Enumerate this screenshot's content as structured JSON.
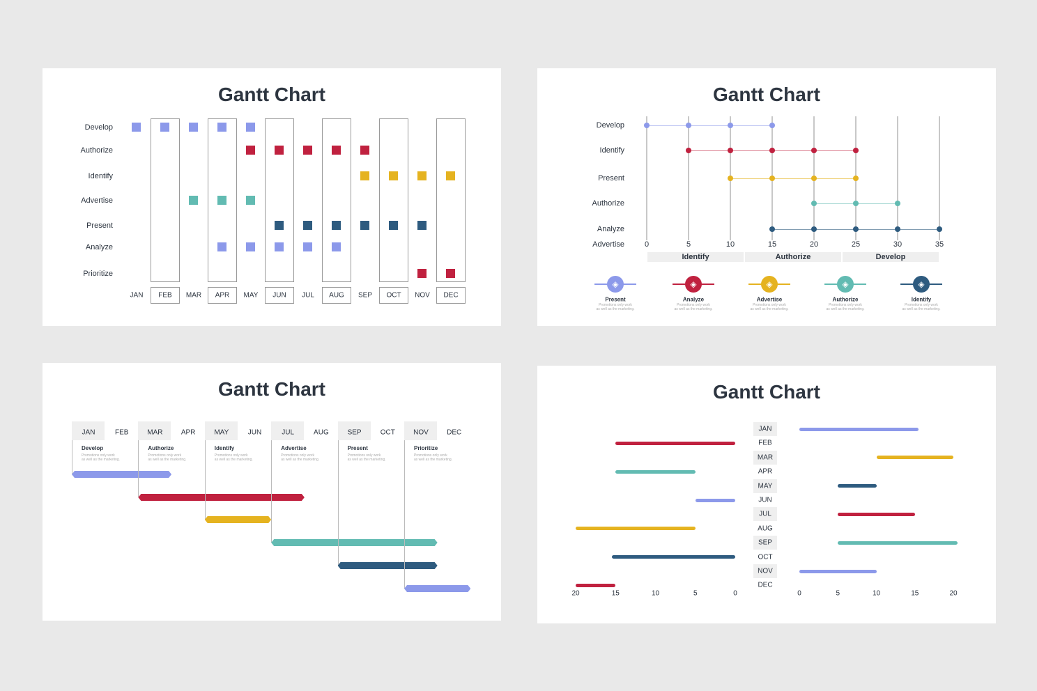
{
  "colors": {
    "lavender": "#8c99ea",
    "crimson": "#c0213f",
    "gold": "#e5b320",
    "teal": "#62bbb2",
    "navy": "#2e5b7f",
    "background": "#e9e9e9"
  },
  "chart_data": [
    {
      "type": "scatter",
      "title": "Gantt Chart",
      "categories": [
        "JAN",
        "FEB",
        "MAR",
        "APR",
        "MAY",
        "JUN",
        "JUL",
        "AUG",
        "SEP",
        "OCT",
        "NOV",
        "DEC"
      ],
      "series": [
        {
          "name": "Develop",
          "color": "lavender",
          "months": [
            "JAN",
            "FEB",
            "MAR",
            "APR",
            "MAY"
          ]
        },
        {
          "name": "Authorize",
          "color": "crimson",
          "months": [
            "MAY",
            "JUN",
            "JUL",
            "AUG",
            "SEP"
          ]
        },
        {
          "name": "Identify",
          "color": "gold",
          "months": [
            "SEP",
            "OCT",
            "NOV",
            "DEC"
          ]
        },
        {
          "name": "Advertise",
          "color": "teal",
          "months": [
            "MAR",
            "APR",
            "MAY"
          ]
        },
        {
          "name": "Present",
          "color": "navy",
          "months": [
            "JUN",
            "JUL",
            "AUG",
            "SEP",
            "OCT",
            "NOV"
          ]
        },
        {
          "name": "Analyze",
          "color": "lavender",
          "months": [
            "APR",
            "MAY",
            "JUN",
            "JUL",
            "AUG"
          ]
        },
        {
          "name": "Prioritize",
          "color": "crimson",
          "months": [
            "NOV",
            "DEC"
          ]
        }
      ]
    },
    {
      "type": "scatter",
      "title": "Gantt Chart",
      "xlim": [
        0,
        35
      ],
      "xticks": [
        "0",
        "5",
        "10",
        "15",
        "20",
        "25",
        "30",
        "35"
      ],
      "rows": [
        "Develop",
        "Identify",
        "Present",
        "Authorize",
        "Analyze",
        "Advertise"
      ],
      "series": [
        {
          "name": "Develop",
          "color": "lavender",
          "x": [
            0,
            5,
            10,
            15
          ]
        },
        {
          "name": "Identify",
          "color": "crimson",
          "x": [
            5,
            10,
            15,
            20,
            25
          ]
        },
        {
          "name": "Present",
          "color": "gold",
          "x": [
            10,
            15,
            20,
            25
          ]
        },
        {
          "name": "Authorize",
          "color": "teal",
          "x": [
            20,
            25,
            30
          ]
        },
        {
          "name": "Analyze",
          "color": "navy",
          "x": [
            15,
            20,
            25,
            30,
            35
          ]
        }
      ],
      "bands": [
        {
          "label": "Identify",
          "from": 0,
          "to": 11.67
        },
        {
          "label": "Authorize",
          "from": 11.67,
          "to": 23.33
        },
        {
          "label": "Develop",
          "from": 23.33,
          "to": 35
        }
      ],
      "legend": [
        {
          "label": "Present",
          "color": "lavender",
          "icon": "rocket-icon",
          "desc1": "Promotions only work",
          "desc2": "as well as the marketing."
        },
        {
          "label": "Analyze",
          "color": "crimson",
          "icon": "piggy-bank-icon",
          "desc1": "Promotions only work",
          "desc2": "as well as the marketing."
        },
        {
          "label": "Advertise",
          "color": "gold",
          "icon": "presentation-board-icon",
          "desc1": "Promotions only work",
          "desc2": "as well as the marketing."
        },
        {
          "label": "Authorize",
          "color": "teal",
          "icon": "delivery-van-icon",
          "desc1": "Promotions only work",
          "desc2": "as well as the marketing."
        },
        {
          "label": "Identify",
          "color": "navy",
          "icon": "piggy-bank-icon",
          "desc1": "Promotions only work",
          "desc2": "as well as the marketing."
        }
      ]
    },
    {
      "type": "bar",
      "title": "Gantt Chart",
      "categories": [
        "JAN",
        "FEB",
        "MAR",
        "APR",
        "MAY",
        "JUN",
        "JUL",
        "AUG",
        "SEP",
        "OCT",
        "NOV",
        "DEC"
      ],
      "series": [
        {
          "name": "Develop",
          "color": "lavender",
          "start": 0,
          "end": 3,
          "desc1": "Promotions only work",
          "desc2": "as well as the marketing."
        },
        {
          "name": "Authorize",
          "color": "crimson",
          "start": 2,
          "end": 7,
          "desc1": "Promotions only work",
          "desc2": "as well as the marketing."
        },
        {
          "name": "Identify",
          "color": "gold",
          "start": 4,
          "end": 6,
          "desc1": "Promotions only work",
          "desc2": "as well as the marketing."
        },
        {
          "name": "Advertise",
          "color": "teal",
          "start": 6,
          "end": 11,
          "desc1": "Promotions only work",
          "desc2": "as well as the marketing."
        },
        {
          "name": "Present",
          "color": "navy",
          "start": 8,
          "end": 11,
          "desc1": "Promotions only work",
          "desc2": "as well as the marketing."
        },
        {
          "name": "Prioritize",
          "color": "lavender",
          "start": 10,
          "end": 12,
          "desc1": "Promotions only work",
          "desc2": "as well as the marketing."
        }
      ]
    },
    {
      "type": "bar",
      "title": "Gantt Chart",
      "categories": [
        "JAN",
        "FEB",
        "MAR",
        "APR",
        "MAY",
        "JUN",
        "JUL",
        "AUG",
        "SEP",
        "OCT",
        "NOV",
        "DEC"
      ],
      "left_ticks": [
        "20",
        "15",
        "10",
        "5",
        "0"
      ],
      "right_ticks": [
        "0",
        "5",
        "10",
        "15",
        "20"
      ],
      "bars": [
        {
          "month": "JAN",
          "side": "right",
          "from": 0,
          "to": 15.5,
          "color": "lavender"
        },
        {
          "month": "FEB",
          "side": "left",
          "from": 0,
          "to": 15,
          "color": "crimson"
        },
        {
          "month": "MAR",
          "side": "right",
          "from": 10,
          "to": 20,
          "color": "gold"
        },
        {
          "month": "APR",
          "side": "left",
          "from": 5,
          "to": 15,
          "color": "teal"
        },
        {
          "month": "MAY",
          "side": "right",
          "from": 5,
          "to": 10,
          "color": "navy"
        },
        {
          "month": "JUN",
          "side": "left",
          "from": 0,
          "to": 5,
          "color": "lavender"
        },
        {
          "month": "JUL",
          "side": "right",
          "from": 5,
          "to": 15,
          "color": "crimson"
        },
        {
          "month": "AUG",
          "side": "left",
          "from": 5,
          "to": 20,
          "color": "gold"
        },
        {
          "month": "SEP",
          "side": "right",
          "from": 5,
          "to": 20.5,
          "color": "teal"
        },
        {
          "month": "OCT",
          "side": "left",
          "from": 0,
          "to": 15.5,
          "color": "navy"
        },
        {
          "month": "NOV",
          "side": "right",
          "from": 0,
          "to": 10,
          "color": "lavender"
        },
        {
          "month": "DEC",
          "side": "left",
          "from": 15,
          "to": 20,
          "color": "crimson"
        }
      ]
    }
  ]
}
